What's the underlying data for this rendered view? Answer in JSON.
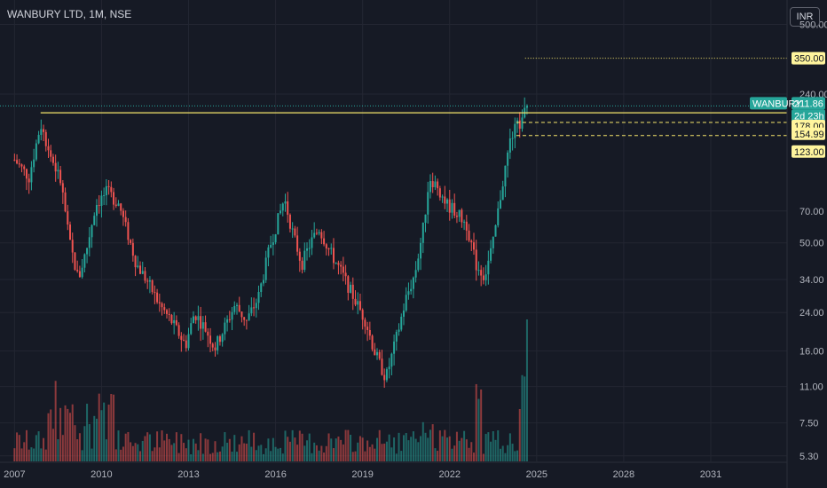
{
  "header": {
    "title": "WANBURY LTD, 1M, NSE",
    "currency": "INR"
  },
  "colors": {
    "background": "#161a25",
    "grid": "#232632",
    "up": "#26a69a",
    "down": "#ef5350",
    "level": "#f5e56b",
    "level_tag": "#fff59d",
    "price_tag": "#26a69a",
    "price_line": "#26a69a"
  },
  "price_tags": {
    "symbol": "WANBURY",
    "last": "211.86",
    "countdown": "2d 23h",
    "target": "350.00",
    "level_1": "178.00",
    "level_2": "154.99",
    "level_3": "123.00"
  },
  "chart_data": {
    "type": "candlestick",
    "timeframe": "1M",
    "y_scale": "log",
    "ylim": [
      5.0,
      600
    ],
    "xlim": [
      2006.5,
      2033.6
    ],
    "y_ticks": [
      "500.00",
      "240.00",
      "178.00",
      "154.99",
      "123.00",
      "70.00",
      "50.00",
      "34.00",
      "24.00",
      "16.00",
      "11.00",
      "7.50",
      "5.30"
    ],
    "y_tick_values": [
      500,
      240,
      178,
      154.99,
      123,
      70,
      50,
      34,
      24,
      16,
      11,
      7.5,
      5.3
    ],
    "x_ticks": [
      "2007",
      "2010",
      "2013",
      "2016",
      "2019",
      "2022",
      "2025",
      "2028",
      "2031"
    ],
    "x_tick_values": [
      2007,
      2010,
      2013,
      2016,
      2019,
      2022,
      2025,
      2028,
      2031
    ],
    "levels": {
      "resistance": 197,
      "target": 350,
      "zone_top": 178,
      "zone_bottom": 154.99
    },
    "last_price": 211.86,
    "path": [
      [
        2007.0,
        120
      ],
      [
        2007.5,
        100
      ],
      [
        2007.9,
        175
      ],
      [
        2008.2,
        130
      ],
      [
        2008.6,
        95
      ],
      [
        2008.9,
        50
      ],
      [
        2009.2,
        34
      ],
      [
        2009.5,
        48
      ],
      [
        2009.8,
        75
      ],
      [
        2010.2,
        86
      ],
      [
        2010.6,
        75
      ],
      [
        2010.9,
        55
      ],
      [
        2011.2,
        40
      ],
      [
        2011.6,
        33
      ],
      [
        2012.0,
        26
      ],
      [
        2012.4,
        22
      ],
      [
        2012.9,
        17
      ],
      [
        2013.2,
        24
      ],
      [
        2013.6,
        20
      ],
      [
        2013.9,
        16.5
      ],
      [
        2014.2,
        20
      ],
      [
        2014.6,
        26
      ],
      [
        2015.0,
        22
      ],
      [
        2015.4,
        28
      ],
      [
        2015.8,
        48
      ],
      [
        2016.1,
        65
      ],
      [
        2016.3,
        80
      ],
      [
        2016.6,
        55
      ],
      [
        2016.9,
        40
      ],
      [
        2017.2,
        50
      ],
      [
        2017.5,
        58
      ],
      [
        2017.9,
        45
      ],
      [
        2018.3,
        36
      ],
      [
        2018.7,
        28
      ],
      [
        2019.1,
        22
      ],
      [
        2019.4,
        16
      ],
      [
        2019.8,
        12
      ],
      [
        2020.1,
        17
      ],
      [
        2020.5,
        28
      ],
      [
        2020.8,
        36
      ],
      [
        2021.1,
        60
      ],
      [
        2021.3,
        100
      ],
      [
        2021.6,
        90
      ],
      [
        2021.9,
        75
      ],
      [
        2022.2,
        70
      ],
      [
        2022.6,
        60
      ],
      [
        2022.9,
        40
      ],
      [
        2023.2,
        35
      ],
      [
        2023.5,
        50
      ],
      [
        2023.8,
        90
      ],
      [
        2024.1,
        150
      ],
      [
        2024.3,
        170
      ],
      [
        2024.5,
        178
      ],
      [
        2024.65,
        211.86
      ]
    ],
    "volume_max": 80
  }
}
